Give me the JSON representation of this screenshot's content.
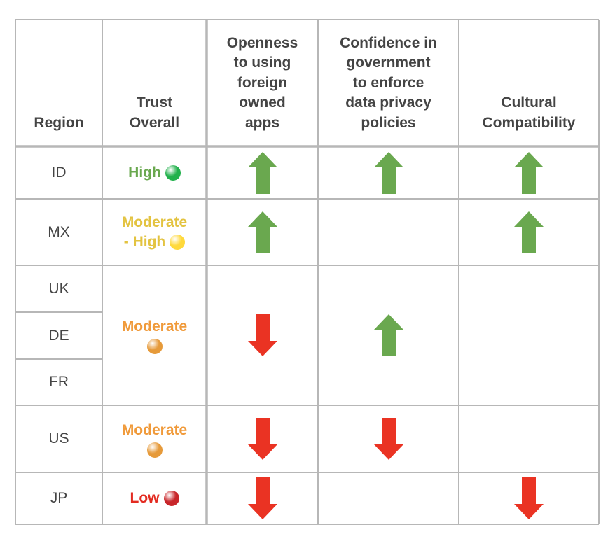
{
  "columns": [
    "Region",
    "Trust Overall",
    "Openness to using foreign owned apps",
    "Confidence in government to enforce data privacy policies",
    "Cultural Compatibility"
  ],
  "header_lines": {
    "region": [
      "Region"
    ],
    "trust": [
      "Trust",
      "Overall"
    ],
    "openness": [
      "Openness",
      "to using",
      "foreign",
      "owned",
      "apps"
    ],
    "confidence": [
      "Confidence in",
      "government",
      "to enforce",
      "data privacy",
      "policies"
    ],
    "cultural": [
      "Cultural",
      "Compatibility"
    ]
  },
  "regions": [
    "ID",
    "MX",
    "UK",
    "DE",
    "FR",
    "US",
    "JP"
  ],
  "trust_groups": [
    {
      "regions": [
        "ID"
      ],
      "lines": [
        "High"
      ],
      "level": "high",
      "color": "#6aa84f",
      "dot_color": "#22b14c",
      "dot_name": "green-circle-icon"
    },
    {
      "regions": [
        "MX"
      ],
      "lines": [
        "Moderate",
        "- High"
      ],
      "level": "moderate-high",
      "color": "#e3c340",
      "dot_color": "#ffd93b",
      "dot_name": "yellow-circle-icon"
    },
    {
      "regions": [
        "UK",
        "DE",
        "FR"
      ],
      "lines": [
        "Moderate"
      ],
      "level": "moderate",
      "color": "#f09a3a",
      "dot_color": "#e69a3a",
      "dot_name": "orange-circle-icon"
    },
    {
      "regions": [
        "US"
      ],
      "lines": [
        "Moderate"
      ],
      "level": "moderate",
      "color": "#f09a3a",
      "dot_color": "#e69a3a",
      "dot_name": "orange-circle-icon"
    },
    {
      "regions": [
        "JP"
      ],
      "lines": [
        "Low"
      ],
      "level": "low",
      "color": "#e32b21",
      "dot_color": "#c8262a",
      "dot_name": "red-circle-icon"
    }
  ],
  "indicators": {
    "openness": [
      {
        "regions": [
          "ID"
        ],
        "direction": "up"
      },
      {
        "regions": [
          "MX"
        ],
        "direction": "up"
      },
      {
        "regions": [
          "UK",
          "DE",
          "FR"
        ],
        "direction": "down"
      },
      {
        "regions": [
          "US"
        ],
        "direction": "down"
      },
      {
        "regions": [
          "JP"
        ],
        "direction": "down"
      }
    ],
    "confidence": [
      {
        "regions": [
          "ID"
        ],
        "direction": "up"
      },
      {
        "regions": [
          "MX"
        ],
        "direction": "none"
      },
      {
        "regions": [
          "UK",
          "DE",
          "FR"
        ],
        "direction": "up"
      },
      {
        "regions": [
          "US"
        ],
        "direction": "down"
      },
      {
        "regions": [
          "JP"
        ],
        "direction": "none"
      }
    ],
    "cultural": [
      {
        "regions": [
          "ID"
        ],
        "direction": "up"
      },
      {
        "regions": [
          "MX"
        ],
        "direction": "up"
      },
      {
        "regions": [
          "UK",
          "DE",
          "FR"
        ],
        "direction": "none"
      },
      {
        "regions": [
          "US"
        ],
        "direction": "none"
      },
      {
        "regions": [
          "JP"
        ],
        "direction": "down"
      }
    ]
  },
  "colors": {
    "arrow_up": "#6aa84f",
    "arrow_down": "#ea3323",
    "grid": "#b7b7b7",
    "text": "#444444"
  }
}
